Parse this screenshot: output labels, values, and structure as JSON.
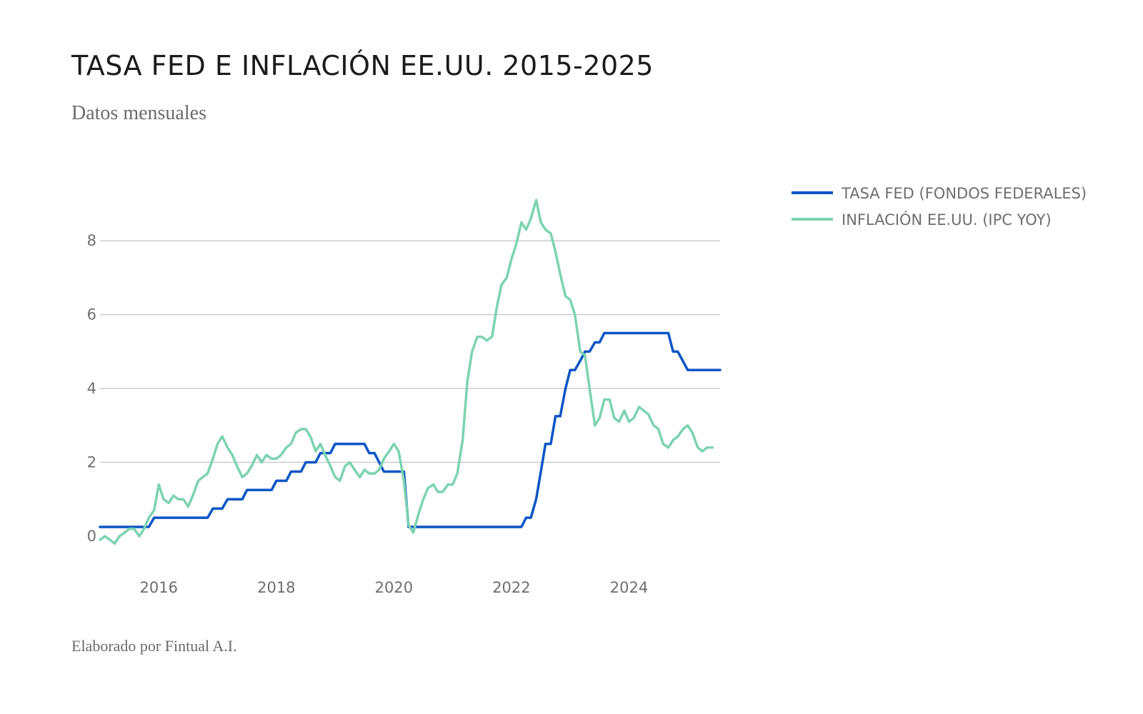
{
  "header": {
    "title": "TASA FED E INFLACIÓN EE.UU. 2015-2025",
    "subtitle": "Datos mensuales"
  },
  "footer": {
    "credit": "Elaborado por Fintual A.I."
  },
  "colors": {
    "fed": "#0b55c6",
    "cpi": "#7dd3b0",
    "grid": "#cccccc",
    "text": "#6e6e6e"
  },
  "chart_data": {
    "type": "line",
    "title": "TASA FED E INFLACIÓN EE.UU. 2015-2025",
    "subtitle": "Datos mensuales",
    "xlabel": "",
    "ylabel": "",
    "x_ticks": [
      {
        "value": 2016,
        "label": "2016"
      },
      {
        "value": 2018,
        "label": "2018"
      },
      {
        "value": 2020,
        "label": "2020"
      },
      {
        "value": 2022,
        "label": "2022"
      },
      {
        "value": 2024,
        "label": "2024"
      }
    ],
    "y_ticks": [
      0,
      2,
      4,
      6,
      8
    ],
    "xlim": [
      2015.0,
      2025.55
    ],
    "ylim": [
      -0.6,
      9.3
    ],
    "grid": true,
    "legend": "right",
    "series": [
      {
        "name": "TASA FED (FONDOS FEDERALES)",
        "color": "#0b55c6",
        "points": [
          [
            2015.0,
            0.25
          ],
          [
            2015.83,
            0.25
          ],
          [
            2015.92,
            0.5
          ],
          [
            2016.83,
            0.5
          ],
          [
            2016.92,
            0.75
          ],
          [
            2017.08,
            0.75
          ],
          [
            2017.17,
            1.0
          ],
          [
            2017.42,
            1.0
          ],
          [
            2017.5,
            1.25
          ],
          [
            2017.92,
            1.25
          ],
          [
            2018.0,
            1.5
          ],
          [
            2018.17,
            1.5
          ],
          [
            2018.25,
            1.75
          ],
          [
            2018.42,
            1.75
          ],
          [
            2018.5,
            2.0
          ],
          [
            2018.67,
            2.0
          ],
          [
            2018.75,
            2.25
          ],
          [
            2018.92,
            2.25
          ],
          [
            2019.0,
            2.5
          ],
          [
            2019.5,
            2.5
          ],
          [
            2019.58,
            2.25
          ],
          [
            2019.67,
            2.25
          ],
          [
            2019.83,
            1.75
          ],
          [
            2020.17,
            1.75
          ],
          [
            2020.25,
            0.25
          ],
          [
            2022.17,
            0.25
          ],
          [
            2022.25,
            0.5
          ],
          [
            2022.33,
            0.5
          ],
          [
            2022.42,
            1.0
          ],
          [
            2022.5,
            1.75
          ],
          [
            2022.58,
            2.5
          ],
          [
            2022.67,
            2.5
          ],
          [
            2022.75,
            3.25
          ],
          [
            2022.83,
            3.25
          ],
          [
            2022.92,
            4.0
          ],
          [
            2023.0,
            4.5
          ],
          [
            2023.08,
            4.5
          ],
          [
            2023.17,
            4.75
          ],
          [
            2023.25,
            5.0
          ],
          [
            2023.33,
            5.0
          ],
          [
            2023.42,
            5.25
          ],
          [
            2023.5,
            5.25
          ],
          [
            2023.58,
            5.5
          ],
          [
            2024.67,
            5.5
          ],
          [
            2024.75,
            5.0
          ],
          [
            2024.83,
            5.0
          ],
          [
            2025.0,
            4.5
          ],
          [
            2025.55,
            4.5
          ]
        ]
      },
      {
        "name": "INFLACIÓN EE.UU. (IPC YOY)",
        "color": "#7dd3b0",
        "points": [
          [
            2015.0,
            -0.1
          ],
          [
            2015.08,
            0.0
          ],
          [
            2015.17,
            -0.1
          ],
          [
            2015.25,
            -0.2
          ],
          [
            2015.33,
            0.0
          ],
          [
            2015.42,
            0.1
          ],
          [
            2015.5,
            0.2
          ],
          [
            2015.58,
            0.2
          ],
          [
            2015.67,
            0.0
          ],
          [
            2015.75,
            0.2
          ],
          [
            2015.83,
            0.5
          ],
          [
            2015.92,
            0.7
          ],
          [
            2016.0,
            1.4
          ],
          [
            2016.08,
            1.0
          ],
          [
            2016.17,
            0.9
          ],
          [
            2016.25,
            1.1
          ],
          [
            2016.33,
            1.0
          ],
          [
            2016.42,
            1.0
          ],
          [
            2016.5,
            0.8
          ],
          [
            2016.58,
            1.1
          ],
          [
            2016.67,
            1.5
          ],
          [
            2016.75,
            1.6
          ],
          [
            2016.83,
            1.7
          ],
          [
            2016.92,
            2.1
          ],
          [
            2017.0,
            2.5
          ],
          [
            2017.08,
            2.7
          ],
          [
            2017.17,
            2.4
          ],
          [
            2017.25,
            2.2
          ],
          [
            2017.33,
            1.9
          ],
          [
            2017.42,
            1.6
          ],
          [
            2017.5,
            1.7
          ],
          [
            2017.58,
            1.9
          ],
          [
            2017.67,
            2.2
          ],
          [
            2017.75,
            2.0
          ],
          [
            2017.83,
            2.2
          ],
          [
            2017.92,
            2.1
          ],
          [
            2018.0,
            2.1
          ],
          [
            2018.08,
            2.2
          ],
          [
            2018.17,
            2.4
          ],
          [
            2018.25,
            2.5
          ],
          [
            2018.33,
            2.8
          ],
          [
            2018.42,
            2.9
          ],
          [
            2018.5,
            2.9
          ],
          [
            2018.58,
            2.7
          ],
          [
            2018.67,
            2.3
          ],
          [
            2018.75,
            2.5
          ],
          [
            2018.83,
            2.2
          ],
          [
            2018.92,
            1.9
          ],
          [
            2019.0,
            1.6
          ],
          [
            2019.08,
            1.5
          ],
          [
            2019.17,
            1.9
          ],
          [
            2019.25,
            2.0
          ],
          [
            2019.33,
            1.8
          ],
          [
            2019.42,
            1.6
          ],
          [
            2019.5,
            1.8
          ],
          [
            2019.58,
            1.7
          ],
          [
            2019.67,
            1.7
          ],
          [
            2019.75,
            1.8
          ],
          [
            2019.83,
            2.1
          ],
          [
            2019.92,
            2.3
          ],
          [
            2020.0,
            2.5
          ],
          [
            2020.08,
            2.3
          ],
          [
            2020.17,
            1.5
          ],
          [
            2020.25,
            0.3
          ],
          [
            2020.33,
            0.1
          ],
          [
            2020.42,
            0.6
          ],
          [
            2020.5,
            1.0
          ],
          [
            2020.58,
            1.3
          ],
          [
            2020.67,
            1.4
          ],
          [
            2020.75,
            1.2
          ],
          [
            2020.83,
            1.2
          ],
          [
            2020.92,
            1.4
          ],
          [
            2021.0,
            1.4
          ],
          [
            2021.08,
            1.7
          ],
          [
            2021.17,
            2.6
          ],
          [
            2021.25,
            4.2
          ],
          [
            2021.33,
            5.0
          ],
          [
            2021.42,
            5.4
          ],
          [
            2021.5,
            5.4
          ],
          [
            2021.58,
            5.3
          ],
          [
            2021.67,
            5.4
          ],
          [
            2021.75,
            6.2
          ],
          [
            2021.83,
            6.8
          ],
          [
            2021.92,
            7.0
          ],
          [
            2022.0,
            7.5
          ],
          [
            2022.08,
            7.9
          ],
          [
            2022.17,
            8.5
          ],
          [
            2022.25,
            8.3
          ],
          [
            2022.33,
            8.6
          ],
          [
            2022.42,
            9.1
          ],
          [
            2022.5,
            8.5
          ],
          [
            2022.58,
            8.3
          ],
          [
            2022.67,
            8.2
          ],
          [
            2022.75,
            7.7
          ],
          [
            2022.83,
            7.1
          ],
          [
            2022.92,
            6.5
          ],
          [
            2023.0,
            6.4
          ],
          [
            2023.08,
            6.0
          ],
          [
            2023.17,
            5.0
          ],
          [
            2023.25,
            4.9
          ],
          [
            2023.33,
            4.0
          ],
          [
            2023.42,
            3.0
          ],
          [
            2023.5,
            3.2
          ],
          [
            2023.58,
            3.7
          ],
          [
            2023.67,
            3.7
          ],
          [
            2023.75,
            3.2
          ],
          [
            2023.83,
            3.1
          ],
          [
            2023.92,
            3.4
          ],
          [
            2024.0,
            3.1
          ],
          [
            2024.08,
            3.2
          ],
          [
            2024.17,
            3.5
          ],
          [
            2024.25,
            3.4
          ],
          [
            2024.33,
            3.3
          ],
          [
            2024.42,
            3.0
          ],
          [
            2024.5,
            2.9
          ],
          [
            2024.58,
            2.5
          ],
          [
            2024.67,
            2.4
          ],
          [
            2024.75,
            2.6
          ],
          [
            2024.83,
            2.7
          ],
          [
            2024.92,
            2.9
          ],
          [
            2025.0,
            3.0
          ],
          [
            2025.08,
            2.8
          ],
          [
            2025.17,
            2.4
          ],
          [
            2025.25,
            2.3
          ],
          [
            2025.33,
            2.4
          ],
          [
            2025.42,
            2.4
          ]
        ]
      }
    ]
  }
}
